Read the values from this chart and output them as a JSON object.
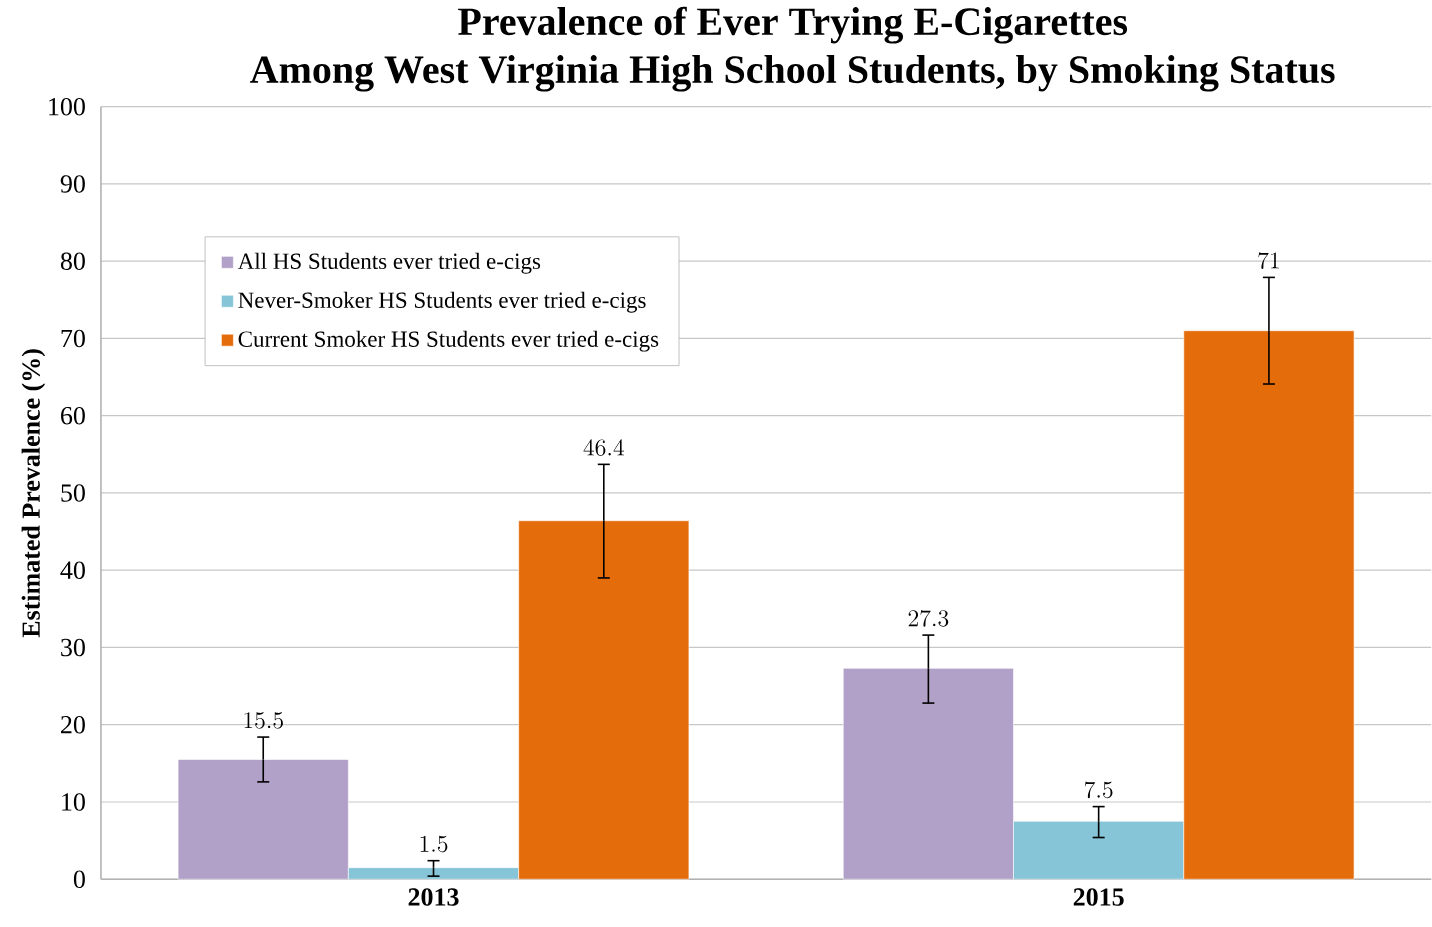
{
  "chart_data": {
    "type": "bar",
    "title": "Prevalence of Ever Trying E-Cigarettes\nAmong West Virginia High School Students, by Smoking Status",
    "ylabel": "Estimated Prevalence (%)",
    "categories": [
      "2013",
      "2015"
    ],
    "series": [
      {
        "name": "All HS Students ever tried e-cigs",
        "color": "#b1a0c7",
        "values": [
          15.5,
          27.3
        ],
        "errors": [
          [
            12.6,
            18.4
          ],
          [
            22.8,
            31.6
          ]
        ]
      },
      {
        "name": "Never-Smoker HS Students ever tried e-cigs",
        "color": "#86c5d8",
        "values": [
          1.5,
          7.5
        ],
        "errors": [
          [
            0.4,
            2.4
          ],
          [
            5.4,
            9.4
          ]
        ]
      },
      {
        "name": "Current Smoker HS Students ever tried e-cigs",
        "color": "#e46c0a",
        "values": [
          46.4,
          71
        ],
        "errors": [
          [
            39.0,
            53.7
          ],
          [
            64.1,
            77.9
          ]
        ]
      }
    ],
    "ylim": [
      0,
      100
    ],
    "yticks": [
      0,
      10,
      20,
      30,
      40,
      50,
      60,
      70,
      80,
      90,
      100
    ],
    "grid": "y",
    "legend": "top left",
    "data_labels": true
  }
}
